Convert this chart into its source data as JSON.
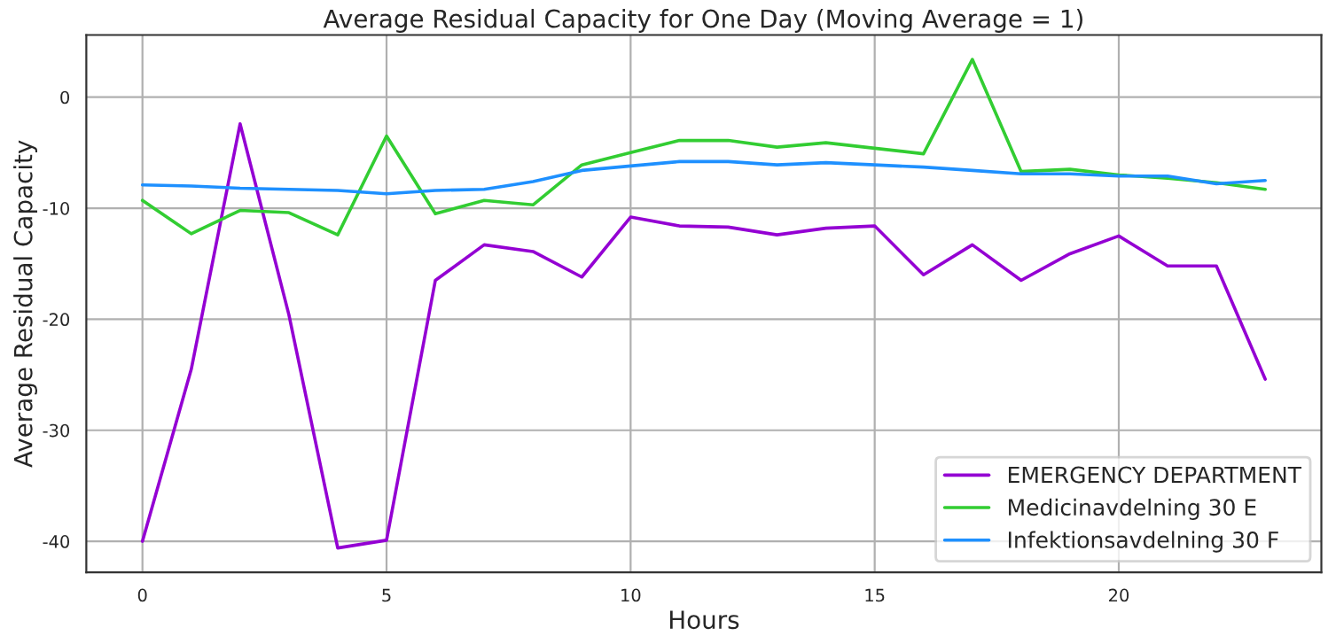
{
  "chart_data": {
    "type": "line",
    "title": "Average Residual Capacity for One Day (Moving Average = 1)",
    "xlabel": "Hours",
    "ylabel": "Average Residual Capacity",
    "x": [
      0,
      1,
      2,
      3,
      4,
      5,
      6,
      7,
      8,
      9,
      10,
      11,
      12,
      13,
      14,
      15,
      16,
      17,
      18,
      19,
      20,
      21,
      22,
      23
    ],
    "series": [
      {
        "name": "EMERGENCY DEPARTMENT",
        "color": "#9400d3",
        "values": [
          -40,
          -24.5,
          -2.4,
          -19.6,
          -40.6,
          -39.9,
          -16.5,
          -13.3,
          -13.9,
          -16.2,
          -10.8,
          -11.6,
          -11.7,
          -12.4,
          -11.8,
          -11.6,
          -16.0,
          -13.3,
          -16.5,
          -14.1,
          -12.5,
          -15.2,
          -15.2,
          -25.4
        ]
      },
      {
        "name": "Medicinavdelning 30 E",
        "color": "#32cd32",
        "values": [
          -9.3,
          -12.3,
          -10.2,
          -10.4,
          -12.4,
          -3.5,
          -10.5,
          -9.3,
          -9.7,
          -6.1,
          -5.0,
          -3.9,
          -3.9,
          -4.5,
          -4.1,
          -4.6,
          -5.1,
          3.4,
          -6.7,
          -6.5,
          -7.0,
          -7.3,
          -7.7,
          -8.3
        ]
      },
      {
        "name": "Infektionsavdelning 30 F",
        "color": "#1e90ff",
        "values": [
          -7.9,
          -8.0,
          -8.2,
          -8.3,
          -8.4,
          -8.7,
          -8.4,
          -8.3,
          -7.6,
          -6.6,
          -6.2,
          -5.8,
          -5.8,
          -6.1,
          -5.9,
          -6.1,
          -6.3,
          -6.6,
          -6.9,
          -6.9,
          -7.1,
          -7.1,
          -7.8,
          -7.5
        ]
      }
    ],
    "xlim": [
      -1.15,
      24.15
    ],
    "ylim": [
      -42.8,
      5.6
    ],
    "xticks": [
      0,
      5,
      10,
      15,
      20
    ],
    "yticks": [
      -40,
      -30,
      -20,
      -10,
      0
    ],
    "grid": true,
    "legend": "lower right",
    "marker": "none",
    "line_style": "solid"
  }
}
